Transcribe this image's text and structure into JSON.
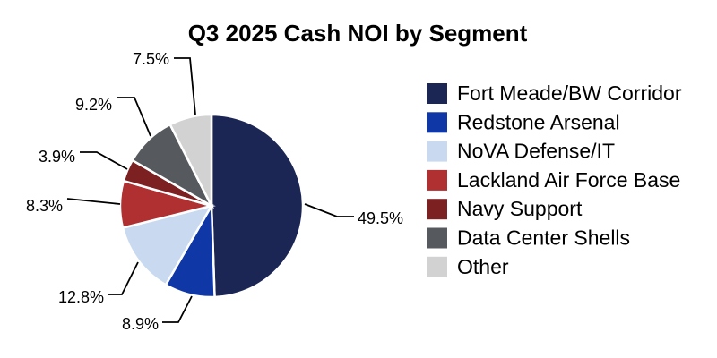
{
  "chart_data": {
    "type": "pie",
    "title": "Q3 2025 Cash NOI by Segment",
    "start_angle_deg": -90,
    "direction": "clockwise",
    "legend_position": "right",
    "slice_border_color": "#ffffff",
    "text_color": "#000000",
    "segments": [
      {
        "label": "Fort Meade/BW Corridor",
        "value": 49.5,
        "pct_label": "49.5%",
        "color": "#1b2655"
      },
      {
        "label": "Redstone Arsenal",
        "value": 8.9,
        "pct_label": "8.9%",
        "color": "#1037a6"
      },
      {
        "label": "NoVA Defense/IT",
        "value": 12.8,
        "pct_label": "12.8%",
        "color": "#c9daf0"
      },
      {
        "label": "Lackland Air Force Base",
        "value": 8.3,
        "pct_label": "8.3%",
        "color": "#b02f31"
      },
      {
        "label": "Navy Support",
        "value": 3.9,
        "pct_label": "3.9%",
        "color": "#7d2022"
      },
      {
        "label": "Data Center Shells",
        "value": 9.2,
        "pct_label": "9.2%",
        "color": "#565a5e"
      },
      {
        "label": "Other",
        "value": 7.5,
        "pct_label": "7.5%",
        "color": "#d2d2d2"
      }
    ]
  }
}
